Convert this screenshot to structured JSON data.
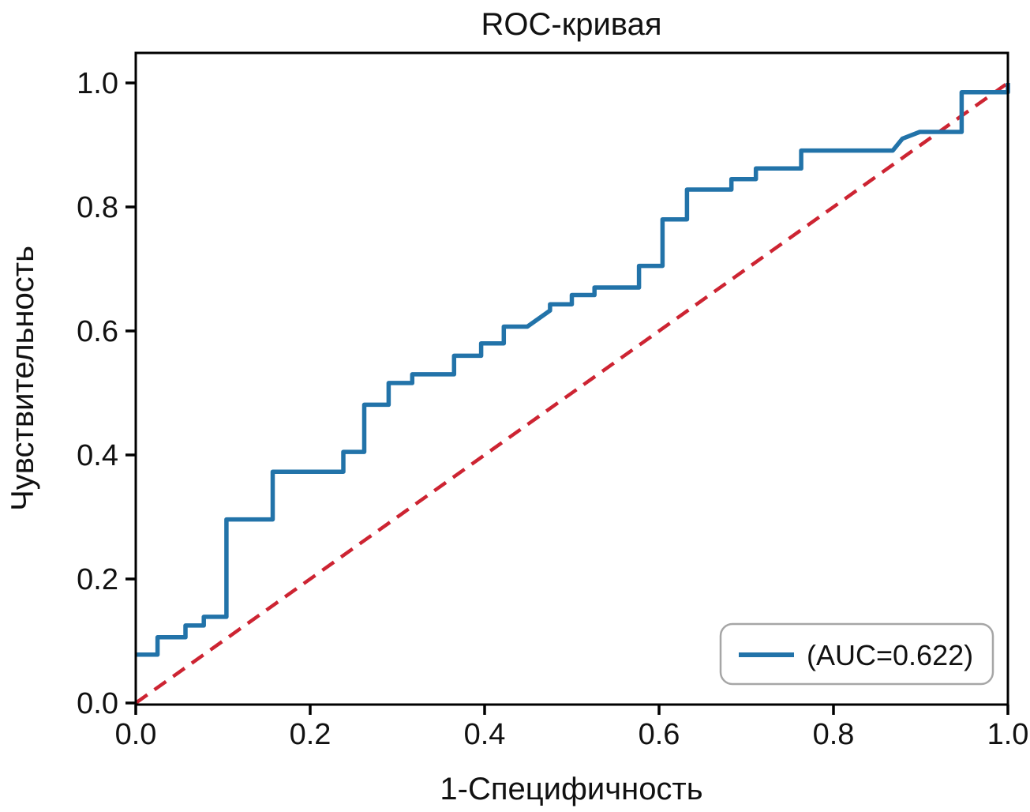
{
  "chart_data": {
    "type": "line",
    "title": "ROC-кривая",
    "xlabel": "1-Специфичность",
    "ylabel": "Чувствительность",
    "xlim": [
      0.0,
      1.0
    ],
    "ylim": [
      0.0,
      1.048
    ],
    "grid": false,
    "xticks": [
      {
        "value": 0.0,
        "label": "0.0"
      },
      {
        "value": 0.2,
        "label": "0.2"
      },
      {
        "value": 0.4,
        "label": "0.4"
      },
      {
        "value": 0.6,
        "label": "0.6"
      },
      {
        "value": 0.8,
        "label": "0.8"
      },
      {
        "value": 1.0,
        "label": "1.0"
      }
    ],
    "yticks": [
      {
        "value": 0.0,
        "label": "0.0"
      },
      {
        "value": 0.2,
        "label": "0.2"
      },
      {
        "value": 0.4,
        "label": "0.4"
      },
      {
        "value": 0.6,
        "label": "0.6"
      },
      {
        "value": 0.8,
        "label": "0.8"
      },
      {
        "value": 1.0,
        "label": "1.0"
      }
    ],
    "legend": {
      "position": "lower right",
      "entries": [
        {
          "label": "(AUC=0.622)",
          "color": "#2273a9",
          "style": "solid"
        }
      ]
    },
    "series": [
      {
        "name": "roc-curve",
        "style": "solid-step",
        "color": "#2273a9",
        "auc": 0.622,
        "points": [
          [
            0.0,
            0.078
          ],
          [
            0.025,
            0.078
          ],
          [
            0.025,
            0.106
          ],
          [
            0.057,
            0.106
          ],
          [
            0.057,
            0.125
          ],
          [
            0.078,
            0.125
          ],
          [
            0.078,
            0.139
          ],
          [
            0.104,
            0.139
          ],
          [
            0.104,
            0.296
          ],
          [
            0.157,
            0.296
          ],
          [
            0.157,
            0.373
          ],
          [
            0.238,
            0.373
          ],
          [
            0.238,
            0.405
          ],
          [
            0.262,
            0.405
          ],
          [
            0.262,
            0.481
          ],
          [
            0.29,
            0.481
          ],
          [
            0.29,
            0.516
          ],
          [
            0.317,
            0.516
          ],
          [
            0.317,
            0.53
          ],
          [
            0.365,
            0.53
          ],
          [
            0.365,
            0.56
          ],
          [
            0.396,
            0.56
          ],
          [
            0.396,
            0.58
          ],
          [
            0.422,
            0.58
          ],
          [
            0.422,
            0.607
          ],
          [
            0.449,
            0.607
          ],
          [
            0.475,
            0.633
          ],
          [
            0.475,
            0.643
          ],
          [
            0.5,
            0.643
          ],
          [
            0.5,
            0.658
          ],
          [
            0.526,
            0.658
          ],
          [
            0.526,
            0.67
          ],
          [
            0.577,
            0.67
          ],
          [
            0.577,
            0.705
          ],
          [
            0.604,
            0.705
          ],
          [
            0.604,
            0.78
          ],
          [
            0.632,
            0.78
          ],
          [
            0.632,
            0.828
          ],
          [
            0.683,
            0.828
          ],
          [
            0.683,
            0.845
          ],
          [
            0.711,
            0.845
          ],
          [
            0.711,
            0.862
          ],
          [
            0.763,
            0.862
          ],
          [
            0.763,
            0.891
          ],
          [
            0.868,
            0.891
          ],
          [
            0.879,
            0.91
          ],
          [
            0.899,
            0.921
          ],
          [
            0.947,
            0.921
          ],
          [
            0.947,
            0.985
          ],
          [
            1.0,
            0.985
          ],
          [
            1.0,
            1.0
          ]
        ]
      },
      {
        "name": "chance-diagonal",
        "style": "dashed",
        "color": "#cd2432",
        "points": [
          [
            0.0,
            0.0
          ],
          [
            1.0,
            1.0
          ]
        ]
      }
    ]
  },
  "colors": {
    "curve": "#2273a9",
    "diagonal": "#cd2432",
    "spine": "#000000",
    "legend_border": "#a6a6a6",
    "background": "#ffffff"
  }
}
